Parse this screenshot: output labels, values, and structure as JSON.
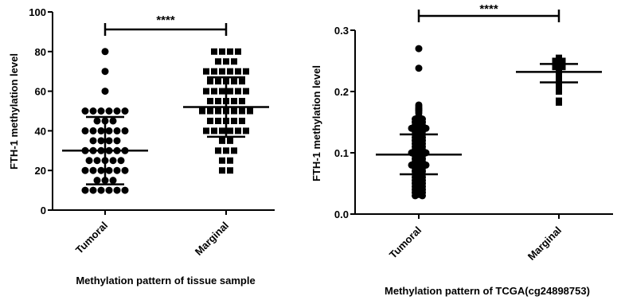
{
  "chart_data": [
    {
      "type": "scatter",
      "subtype": "dot-plot-mean-sd",
      "xlabel": "Methylation pattern of tissue sample",
      "ylabel": "FTH-1 methylation level",
      "categories": [
        "Tumoral",
        "Marginal"
      ],
      "ylim": [
        0,
        100
      ],
      "yticks": [
        "0",
        "20",
        "40",
        "60",
        "80",
        "100"
      ],
      "significance": "****",
      "grid": false,
      "legend": "none",
      "series": [
        {
          "category": "Tumoral",
          "marker": "circle",
          "mean": 30,
          "sd_low": 13,
          "sd_high": 47,
          "values": [
            80,
            70,
            60,
            50,
            50,
            50,
            50,
            50,
            50,
            45,
            45,
            45,
            40,
            40,
            40,
            40,
            40,
            40,
            35,
            35,
            35,
            35,
            30,
            30,
            30,
            30,
            30,
            30,
            25,
            25,
            25,
            25,
            25,
            20,
            20,
            20,
            20,
            20,
            20,
            15,
            15,
            15,
            10,
            10,
            10,
            10,
            10,
            10
          ]
        },
        {
          "category": "Marginal",
          "marker": "square",
          "mean": 52,
          "sd_low": 37,
          "sd_high": 67,
          "values": [
            80,
            80,
            80,
            80,
            75,
            75,
            75,
            70,
            70,
            70,
            70,
            70,
            70,
            65,
            65,
            65,
            65,
            65,
            60,
            60,
            60,
            60,
            60,
            60,
            55,
            55,
            55,
            55,
            55,
            50,
            50,
            50,
            50,
            50,
            50,
            50,
            45,
            45,
            45,
            45,
            45,
            40,
            40,
            40,
            40,
            40,
            40,
            35,
            35,
            30,
            30,
            30,
            25,
            25,
            20,
            20
          ]
        }
      ]
    },
    {
      "type": "scatter",
      "subtype": "dot-plot-mean-sd",
      "xlabel": "Methylation pattern of TCGA(cg24898753)",
      "ylabel": "FTH-1 methylation level",
      "categories": [
        "Tumoral",
        "Marginal"
      ],
      "ylim": [
        0,
        0.3
      ],
      "yticks": [
        "0.0",
        "0.1",
        "0.2",
        "0.3"
      ],
      "significance": "****",
      "grid": false,
      "legend": "none",
      "series": [
        {
          "category": "Tumoral",
          "marker": "circle",
          "mean": 0.097,
          "sd_low": 0.065,
          "sd_high": 0.13,
          "values": [
            0.27,
            0.238,
            0.178,
            0.175,
            0.172,
            0.17,
            0.168,
            0.165,
            0.16,
            0.158,
            0.155,
            0.155,
            0.15,
            0.15,
            0.148,
            0.145,
            0.145,
            0.14,
            0.14,
            0.14,
            0.138,
            0.135,
            0.135,
            0.132,
            0.13,
            0.13,
            0.128,
            0.125,
            0.125,
            0.122,
            0.12,
            0.12,
            0.118,
            0.115,
            0.115,
            0.112,
            0.11,
            0.11,
            0.108,
            0.105,
            0.105,
            0.102,
            0.1,
            0.1,
            0.1,
            0.098,
            0.095,
            0.095,
            0.092,
            0.09,
            0.09,
            0.088,
            0.085,
            0.085,
            0.082,
            0.08,
            0.08,
            0.08,
            0.078,
            0.075,
            0.075,
            0.072,
            0.07,
            0.07,
            0.068,
            0.065,
            0.065,
            0.062,
            0.06,
            0.06,
            0.058,
            0.055,
            0.055,
            0.052,
            0.05,
            0.05,
            0.048,
            0.045,
            0.045,
            0.042,
            0.04,
            0.04,
            0.038,
            0.035,
            0.035,
            0.032,
            0.03,
            0.03
          ]
        },
        {
          "category": "Marginal",
          "marker": "square",
          "mean": 0.232,
          "sd_low": 0.215,
          "sd_high": 0.245,
          "values": [
            0.255,
            0.253,
            0.252,
            0.25,
            0.25,
            0.248,
            0.248,
            0.246,
            0.245,
            0.245,
            0.243,
            0.242,
            0.24,
            0.24,
            0.238,
            0.237,
            0.236,
            0.235,
            0.234,
            0.233,
            0.232,
            0.231,
            0.23,
            0.229,
            0.228,
            0.227,
            0.225,
            0.224,
            0.222,
            0.22,
            0.218,
            0.215,
            0.212,
            0.21,
            0.205,
            0.2,
            0.185,
            0.182
          ]
        }
      ]
    }
  ]
}
